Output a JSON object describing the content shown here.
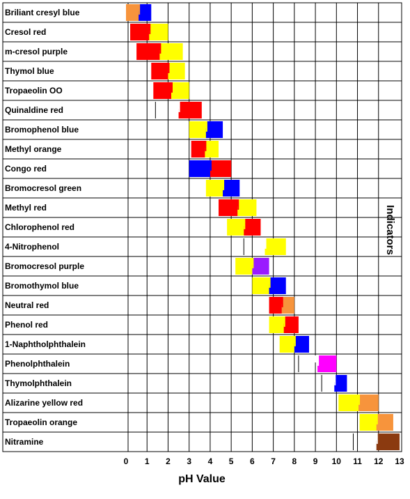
{
  "chart_data": {
    "type": "range-bar",
    "xlabel": "pH Value",
    "side_label": "Indicators",
    "xlim": [
      0,
      13
    ],
    "x_ticks": [
      "0",
      "1",
      "2",
      "3",
      "4",
      "5",
      "6",
      "7",
      "8",
      "9",
      "10",
      "11",
      "12",
      "13"
    ],
    "colors": {
      "orange": "#f7943c",
      "blue": "#0000ff",
      "red": "#ff0000",
      "yellow": "#ffff00",
      "purple": "#9a1aff",
      "magenta": "#ff00ff",
      "brown": "#8b3a10",
      "clear": "#ffffff"
    },
    "indicators": [
      {
        "name": "Briliant cresyl blue",
        "from": "orange",
        "to": "blue",
        "start": 0.0,
        "end": 1.2
      },
      {
        "name": "Cresol red",
        "from": "red",
        "to": "yellow",
        "start": 0.2,
        "end": 2.0
      },
      {
        "name": "m-cresol purple",
        "from": "red",
        "to": "yellow",
        "start": 0.5,
        "end": 2.7
      },
      {
        "name": "Thymol blue",
        "from": "red",
        "to": "yellow",
        "start": 1.2,
        "end": 2.8
      },
      {
        "name": "Tropaeolin OO",
        "from": "red",
        "to": "yellow",
        "start": 1.3,
        "end": 3.0
      },
      {
        "name": "Quinaldine red",
        "from": "clear",
        "to": "red",
        "start": 1.4,
        "end": 3.6
      },
      {
        "name": "Bromophenol blue",
        "from": "yellow",
        "to": "blue",
        "start": 3.0,
        "end": 4.6
      },
      {
        "name": "Methyl orange",
        "from": "red",
        "to": "yellow",
        "start": 3.1,
        "end": 4.4
      },
      {
        "name": "Congo red",
        "from": "blue",
        "to": "red",
        "start": 3.0,
        "end": 5.0
      },
      {
        "name": "Bromocresol green",
        "from": "yellow",
        "to": "blue",
        "start": 3.8,
        "end": 5.4
      },
      {
        "name": "Methyl red",
        "from": "red",
        "to": "yellow",
        "start": 4.4,
        "end": 6.2
      },
      {
        "name": "Chlorophenol red",
        "from": "yellow",
        "to": "red",
        "start": 4.8,
        "end": 6.4
      },
      {
        "name": "4-Nitrophenol",
        "from": "clear",
        "to": "yellow",
        "start": 5.6,
        "end": 7.6
      },
      {
        "name": "Bromocresol purple",
        "from": "yellow",
        "to": "purple",
        "start": 5.2,
        "end": 6.8
      },
      {
        "name": "Bromothymol blue",
        "from": "yellow",
        "to": "blue",
        "start": 6.0,
        "end": 7.6
      },
      {
        "name": "Neutral red",
        "from": "red",
        "to": "orange",
        "start": 6.8,
        "end": 8.0
      },
      {
        "name": "Phenol red",
        "from": "yellow",
        "to": "red",
        "start": 6.8,
        "end": 8.2
      },
      {
        "name": "1-Naphtholphthalein",
        "from": "yellow",
        "to": "blue",
        "start": 7.3,
        "end": 8.7
      },
      {
        "name": "Phenolphthalein",
        "from": "clear",
        "to": "magenta",
        "start": 8.2,
        "end": 10.0
      },
      {
        "name": "Thymolphthalein",
        "from": "clear",
        "to": "blue",
        "start": 9.3,
        "end": 10.5
      },
      {
        "name": "Alizarine yellow red",
        "from": "yellow",
        "to": "orange",
        "start": 10.1,
        "end": 12.0
      },
      {
        "name": "Tropaeolin orange",
        "from": "yellow",
        "to": "orange",
        "start": 11.1,
        "end": 12.7
      },
      {
        "name": "Nitramine",
        "from": "clear",
        "to": "brown",
        "start": 10.8,
        "end": 13.0
      }
    ]
  }
}
